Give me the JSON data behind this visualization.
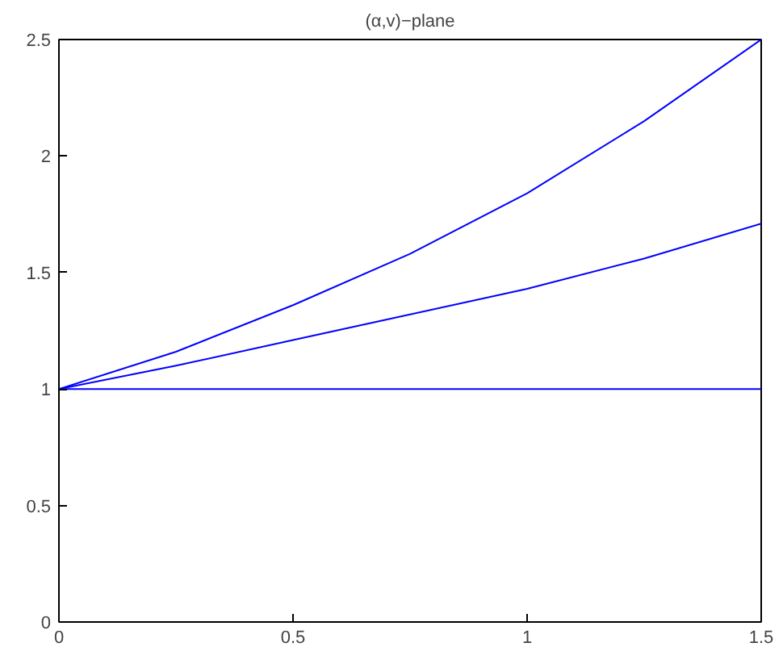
{
  "chart_data": {
    "type": "line",
    "title": "(α,v)−plane",
    "x": [
      0,
      0.25,
      0.5,
      0.75,
      1,
      1.25,
      1.5
    ],
    "series": [
      {
        "color": "#0000ff",
        "values": [
          1,
          1.16,
          1.36,
          1.58,
          1.84,
          2.15,
          2.5
        ]
      },
      {
        "color": "#0000ff",
        "values": [
          1,
          1.1,
          1.21,
          1.32,
          1.43,
          1.56,
          1.71
        ]
      },
      {
        "color": "#0000ff",
        "values": [
          1,
          1,
          1,
          1,
          1,
          1,
          1
        ]
      }
    ],
    "xlim": [
      0,
      1.5
    ],
    "ylim": [
      0,
      2.5
    ],
    "xticks": [
      0,
      0.5,
      1,
      1.5
    ],
    "yticks": [
      0,
      0.5,
      1,
      1.5,
      2,
      2.5
    ],
    "marker": "none",
    "line_style": "solid"
  }
}
